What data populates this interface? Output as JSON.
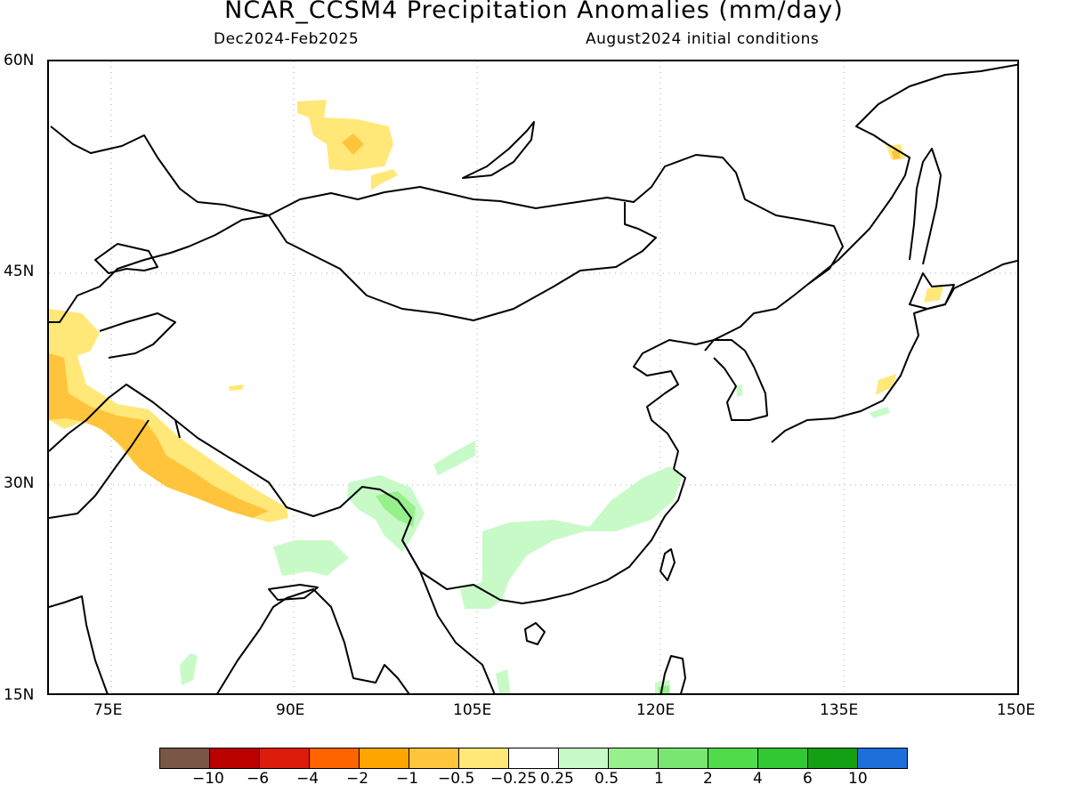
{
  "header": {
    "title": "NCAR_CCSM4 Precipitation Anomalies (mm/day)",
    "period": "Dec2024-Feb2025",
    "init": "August2024 initial conditions"
  },
  "map": {
    "lat_ticks": [
      "60N",
      "45N",
      "30N",
      "15N"
    ],
    "lon_ticks": [
      "75E",
      "90E",
      "105E",
      "120E",
      "135E",
      "150E"
    ],
    "extent": {
      "lon": [
        68,
        150
      ],
      "lat": [
        15,
        60
      ]
    },
    "gridlines": "dotted"
  },
  "colorbar": {
    "colors": [
      "#7a5646",
      "#bb0000",
      "#dd1c0c",
      "#ff6400",
      "#ffa500",
      "#ffc43c",
      "#ffe878",
      "#ffffff",
      "#c8fac8",
      "#96f08c",
      "#78e670",
      "#50dc4a",
      "#32c832",
      "#14a014",
      "#1e6edc"
    ],
    "labels": [
      "−10",
      "−6",
      "−4",
      "−2",
      "−1",
      "−0.5",
      "−0.25",
      "0.25",
      "0.5",
      "1",
      "2",
      "4",
      "6",
      "10"
    ]
  }
}
